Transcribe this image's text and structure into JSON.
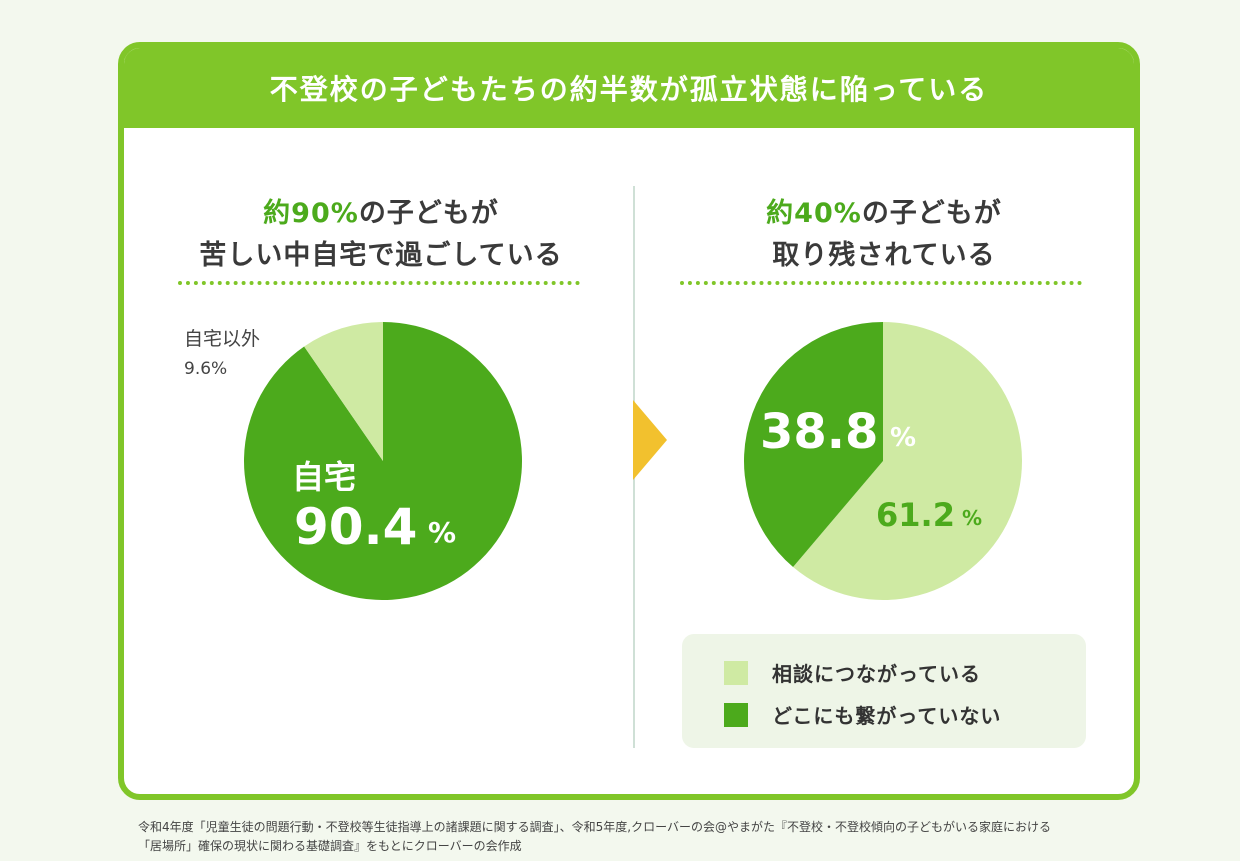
{
  "banner": {
    "title": "不登校の子どもたちの約半数が孤立状態に陥っている"
  },
  "left_panel": {
    "heading_accent": "約90%",
    "heading_rest_1": "の子どもが",
    "heading_line_2": "苦しい中自宅で過ごしている",
    "outside_label": "自宅以外",
    "outside_value": "9.6%",
    "inside_label": "自宅",
    "inside_value_num": "90.4",
    "inside_value_unit": "%"
  },
  "right_panel": {
    "heading_accent": "約40%",
    "heading_rest_1": "の子どもが",
    "heading_line_2": "取り残されている",
    "big_value_num": "38.8",
    "big_value_unit": "%",
    "small_value_num": "61.2",
    "small_value_unit": "%",
    "legend": [
      {
        "label": "相談につながっている",
        "color": "#cfeaa3"
      },
      {
        "label": "どこにも繋がっていない",
        "color": "#4caa1c"
      }
    ]
  },
  "colors": {
    "accent": "#80c629",
    "dark_green": "#4caa1c",
    "light_green": "#cfeaa3",
    "arrow": "#f2c12e"
  },
  "chart_data": [
    {
      "type": "pie",
      "title": "約90%の子どもが苦しい中自宅で過ごしている",
      "categories": [
        "自宅",
        "自宅以外"
      ],
      "values": [
        90.4,
        9.6
      ],
      "colors": [
        "#4caa1c",
        "#cfeaa3"
      ]
    },
    {
      "type": "pie",
      "title": "約40%の子どもが取り残されている",
      "categories": [
        "相談につながっている",
        "どこにも繋がっていない"
      ],
      "values": [
        61.2,
        38.8
      ],
      "colors": [
        "#cfeaa3",
        "#4caa1c"
      ]
    }
  ],
  "footnote": {
    "line1": "令和4年度「児童生徒の問題行動・不登校等生徒指導上の諸課題に関する調査」、令和5年度,クローバーの会@やまがた『不登校・不登校傾向の子どもがいる家庭における",
    "line2": "「居場所」確保の現状に関わる基礎調査』をもとにクローバーの会作成"
  }
}
